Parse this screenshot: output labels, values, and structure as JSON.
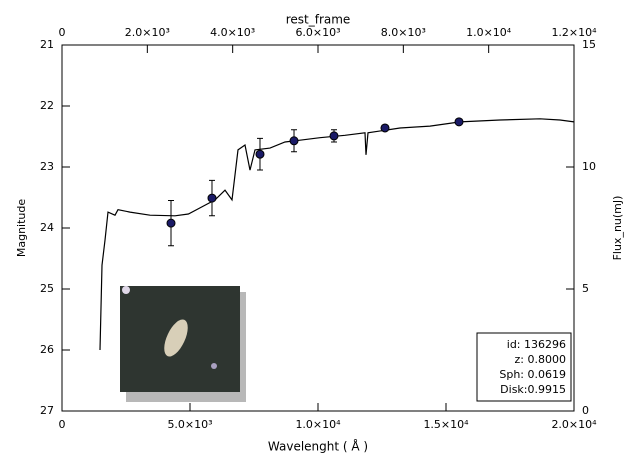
{
  "chart_data": {
    "type": "line",
    "xlabel": "Wavelenght ( Å )",
    "ylabel": "Magnitude",
    "x2label": "rest_frame",
    "y2label": "Flux_nu(mJ)",
    "xlim": [
      0,
      20000
    ],
    "xticks": [
      0,
      {
        "value": 5000,
        "label": "5.0×10³"
      },
      {
        "value": 10000,
        "label": "1.0×10⁴"
      },
      {
        "value": 15000,
        "label": "1.5×10⁴"
      },
      {
        "value": 20000,
        "label": "2.0×10⁴"
      }
    ],
    "x2lim": [
      0,
      12000
    ],
    "x2ticks": [
      0,
      {
        "value": 2000,
        "label": "2.0×10³"
      },
      {
        "value": 4000,
        "label": "4.0×10³"
      },
      {
        "value": 6000,
        "label": "6.0×10³"
      },
      {
        "value": 8000,
        "label": "8.0×10³"
      },
      {
        "value": 10000,
        "label": "1.0×10⁴"
      },
      {
        "value": 12000,
        "label": "1.2×10⁴"
      }
    ],
    "ylim": [
      27,
      21
    ],
    "yticks": [
      21,
      22,
      23,
      24,
      25,
      26,
      27
    ],
    "y2lim": [
      0,
      15
    ],
    "y2ticks": [
      0,
      5,
      10,
      15
    ],
    "spectrum": {
      "color": "#000000",
      "x": [
        1484,
        1563,
        1680,
        1797,
        2070,
        2188,
        2656,
        3438,
        4414,
        4938,
        5391,
        5977,
        6367,
        6641,
        6875,
        7148,
        7344,
        7539,
        8125,
        8711,
        9297,
        10078,
        11055,
        11836,
        11875,
        11953,
        13203,
        14375,
        15547,
        17109,
        18672,
        19453,
        20000
      ],
      "values": [
        26.0,
        24.61,
        24.2,
        23.74,
        23.79,
        23.7,
        23.74,
        23.79,
        23.8,
        23.77,
        23.67,
        23.54,
        23.38,
        23.54,
        22.72,
        22.64,
        23.05,
        22.72,
        22.69,
        22.59,
        22.56,
        22.52,
        22.48,
        22.44,
        22.8,
        22.44,
        22.36,
        22.33,
        22.26,
        22.23,
        22.21,
        22.23,
        22.26
      ]
    },
    "photometry": {
      "color": "#1a1a66",
      "x": [
        4258,
        5859,
        7734,
        9063,
        10625,
        12617,
        15508
      ],
      "values": [
        23.92,
        23.51,
        22.79,
        22.57,
        22.49,
        22.36,
        22.26
      ],
      "errors": [
        0.37,
        0.29,
        0.26,
        0.18,
        0.1,
        0.03,
        0.02
      ]
    },
    "annotations": [
      "id: 136296",
      "z: 0.8000",
      "Sph: 0.0619",
      "Disk:0.9915"
    ]
  }
}
